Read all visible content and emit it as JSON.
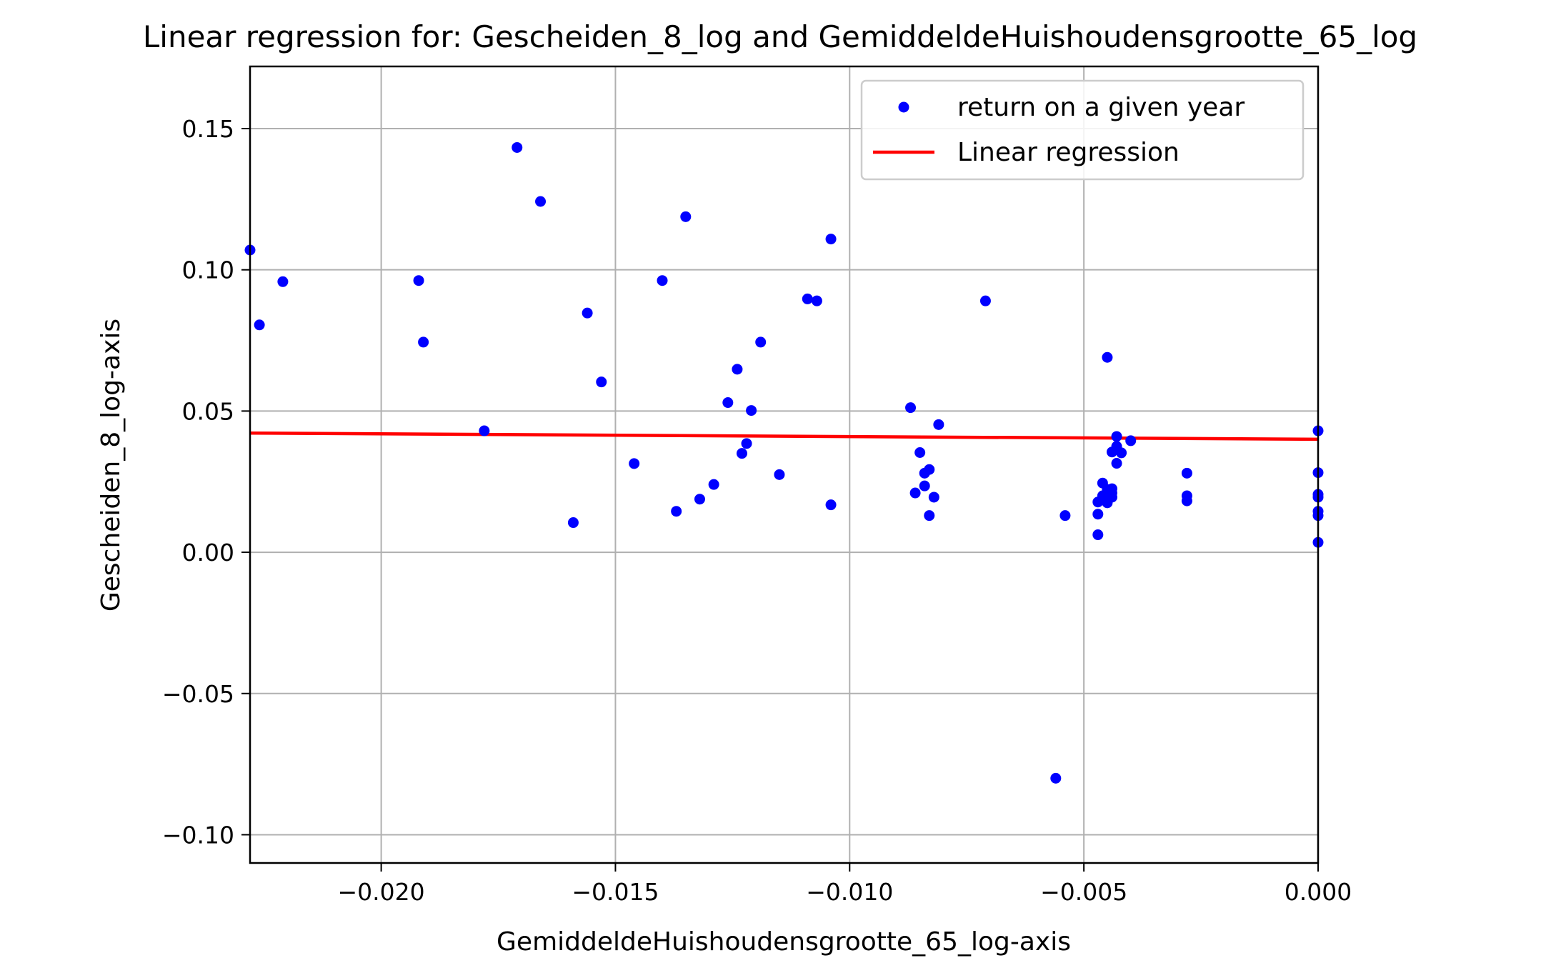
{
  "chart_data": {
    "type": "scatter",
    "title": "Linear regression for: Gescheiden_8_log and GemiddeldeHuishoudensgrootte_65_log",
    "xlabel": "GemiddeldeHuishoudensgrootte_65_log-axis",
    "ylabel": "Gescheiden_8_log-axis",
    "xlim": [
      -0.0228,
      0.0
    ],
    "ylim": [
      -0.11,
      0.172
    ],
    "x_ticks": [
      -0.02,
      -0.015,
      -0.01,
      -0.005,
      0.0
    ],
    "x_tick_labels": [
      "−0.020",
      "−0.015",
      "−0.010",
      "−0.005",
      "0.000"
    ],
    "y_ticks": [
      0.15,
      0.1,
      0.05,
      0.0,
      -0.05,
      -0.1
    ],
    "y_tick_labels": [
      "0.15",
      "0.10",
      "0.05",
      "0.00",
      "−0.05",
      "−0.10"
    ],
    "grid": true,
    "legend_position": "top-right",
    "series": [
      {
        "name": "return on a given year",
        "kind": "scatter",
        "color": "#0000ff",
        "points": [
          [
            -0.0228,
            0.107
          ],
          [
            -0.0226,
            0.0805
          ],
          [
            -0.0221,
            0.0958
          ],
          [
            -0.0192,
            0.0962
          ],
          [
            -0.0191,
            0.0744
          ],
          [
            -0.0178,
            0.043
          ],
          [
            -0.0171,
            0.1433
          ],
          [
            -0.0166,
            0.1242
          ],
          [
            -0.0159,
            0.0105
          ],
          [
            -0.0156,
            0.0847
          ],
          [
            -0.0153,
            0.0603
          ],
          [
            -0.0146,
            0.0314
          ],
          [
            -0.014,
            0.0962
          ],
          [
            -0.0137,
            0.0145
          ],
          [
            -0.0135,
            0.1188
          ],
          [
            -0.0132,
            0.0188
          ],
          [
            -0.0129,
            0.024
          ],
          [
            -0.0126,
            0.053
          ],
          [
            -0.0124,
            0.0648
          ],
          [
            -0.0123,
            0.035
          ],
          [
            -0.0122,
            0.0385
          ],
          [
            -0.0121,
            0.0502
          ],
          [
            -0.0119,
            0.0744
          ],
          [
            -0.0115,
            0.0275
          ],
          [
            -0.0109,
            0.0897
          ],
          [
            -0.0107,
            0.089
          ],
          [
            -0.0104,
            0.1109
          ],
          [
            -0.0104,
            0.0168
          ],
          [
            -0.0087,
            0.0512
          ],
          [
            -0.0086,
            0.021
          ],
          [
            -0.0085,
            0.0353
          ],
          [
            -0.0084,
            0.0235
          ],
          [
            -0.0084,
            0.028
          ],
          [
            -0.0083,
            0.0293
          ],
          [
            -0.0083,
            0.013
          ],
          [
            -0.0082,
            0.0195
          ],
          [
            -0.0081,
            0.0452
          ],
          [
            -0.0071,
            0.089
          ],
          [
            -0.0056,
            -0.08
          ],
          [
            -0.0054,
            0.013
          ],
          [
            -0.0047,
            0.0062
          ],
          [
            -0.0047,
            0.0135
          ],
          [
            -0.0047,
            0.0178
          ],
          [
            -0.0046,
            0.02
          ],
          [
            -0.0046,
            0.0245
          ],
          [
            -0.0045,
            0.0222
          ],
          [
            -0.0045,
            0.069
          ],
          [
            -0.0045,
            0.0175
          ],
          [
            -0.0044,
            0.0195
          ],
          [
            -0.0044,
            0.021
          ],
          [
            -0.0044,
            0.0225
          ],
          [
            -0.0044,
            0.0355
          ],
          [
            -0.0043,
            0.0315
          ],
          [
            -0.0043,
            0.0375
          ],
          [
            -0.0043,
            0.041
          ],
          [
            -0.0042,
            0.0352
          ],
          [
            -0.004,
            0.0395
          ],
          [
            -0.0028,
            0.028
          ],
          [
            -0.0028,
            0.02
          ],
          [
            -0.0028,
            0.0182
          ],
          [
            0.0,
            0.043
          ],
          [
            0.0,
            0.0282
          ],
          [
            0.0,
            0.0205
          ],
          [
            0.0,
            0.0195
          ],
          [
            0.0,
            0.0145
          ],
          [
            0.0,
            0.013
          ],
          [
            0.0,
            0.0035
          ]
        ]
      },
      {
        "name": "Linear regression",
        "kind": "line",
        "color": "#ff0000",
        "points": [
          [
            -0.0228,
            0.0422
          ],
          [
            0.0,
            0.04
          ]
        ]
      }
    ]
  }
}
